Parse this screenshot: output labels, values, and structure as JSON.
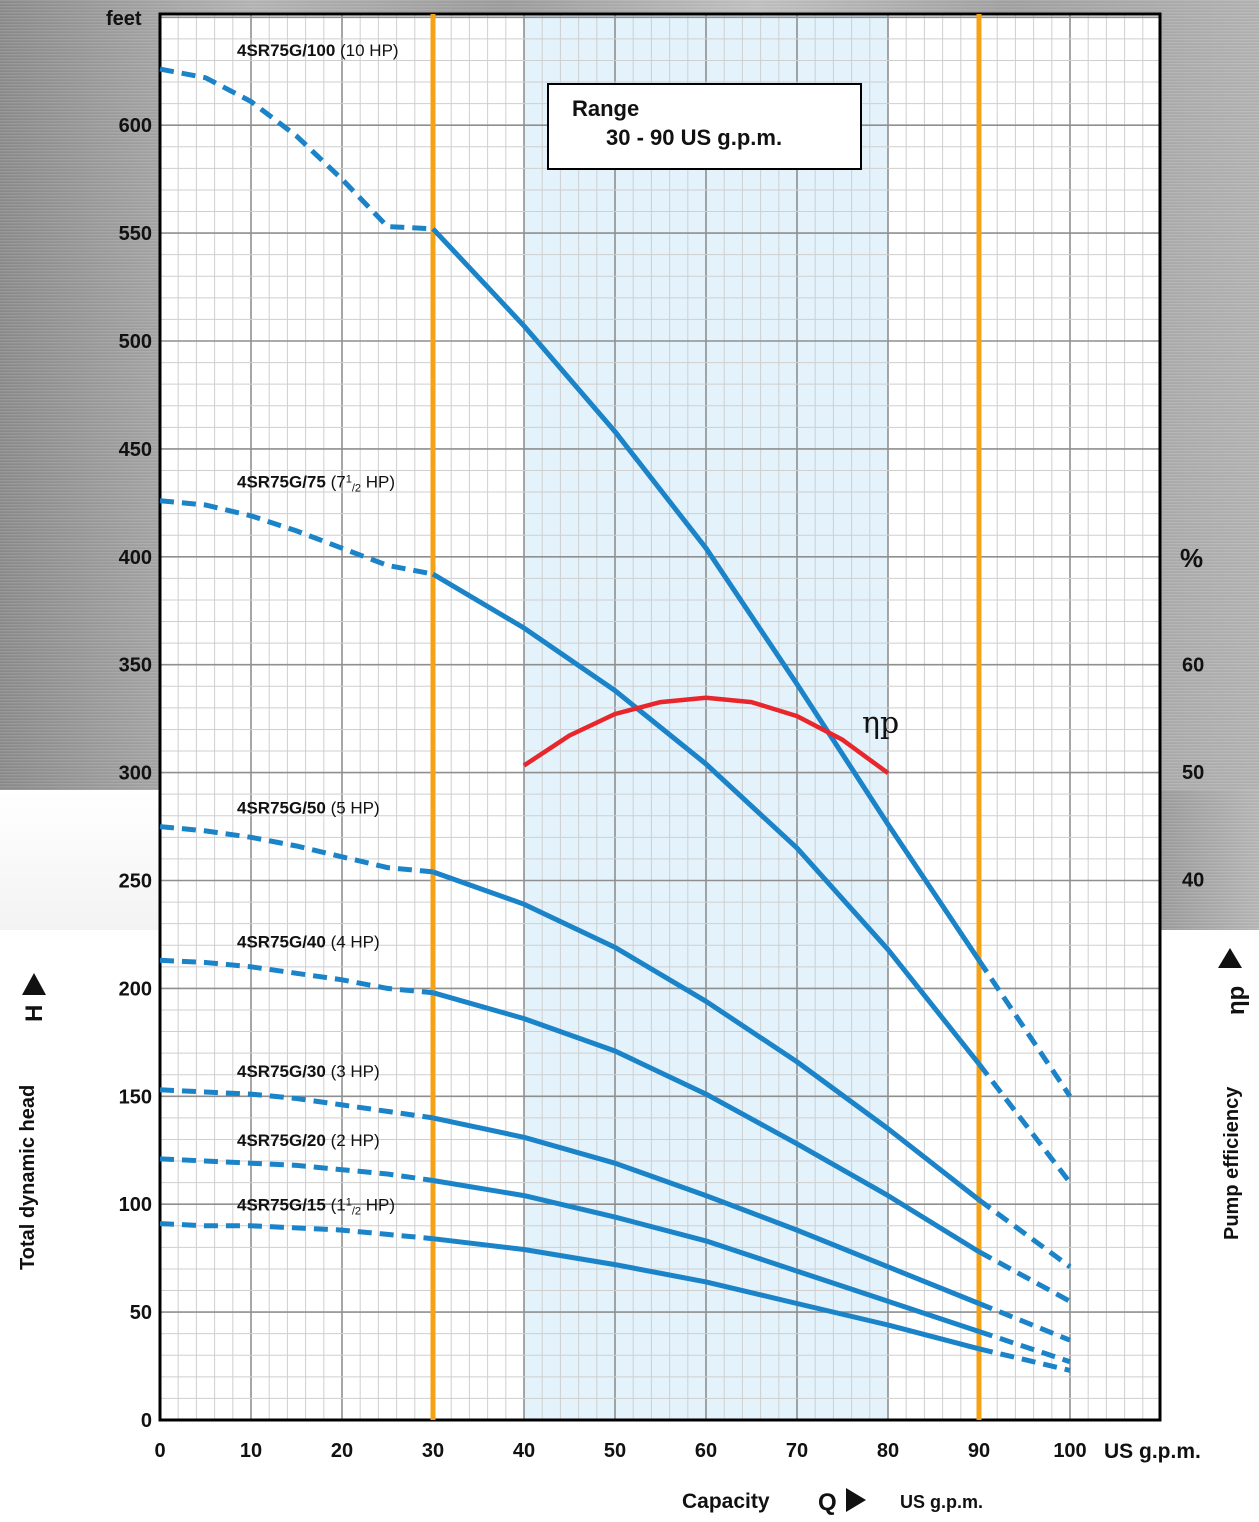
{
  "chart_data": {
    "type": "line",
    "x_unit_label": "US g.p.m.",
    "xlabel": "Capacity",
    "xlabel_symbol": "Q",
    "xlabel_unit": "US g.p.m.",
    "y_unit_label": "feet",
    "ylabel": "Total dynamic head",
    "ylabel_symbol": "H",
    "y2_unit_label": "%",
    "y2label": "Pump efficiency",
    "y2label_symbol": "ηp",
    "xlim": [
      0,
      110
    ],
    "ylim": [
      0,
      650
    ],
    "y2lim": [
      20,
      70
    ],
    "x_ticks": [
      "0",
      "10",
      "20",
      "30",
      "40",
      "50",
      "60",
      "70",
      "80",
      "90",
      "100"
    ],
    "y_ticks": [
      "0",
      "50",
      "100",
      "150",
      "200",
      "250",
      "300",
      "350",
      "400",
      "450",
      "500",
      "550",
      "600"
    ],
    "y2_ticks": [
      "40",
      "50",
      "60"
    ],
    "grid": true,
    "range_box": {
      "title": "Range",
      "text": "30 - 90 US g.p.m.",
      "x_from": 40,
      "x_to": 80
    },
    "operating_limits": [
      30,
      90
    ],
    "colors": {
      "curve": "#1b83c8",
      "efficiency": "#e8262b",
      "limit": "#f5a214",
      "range_fill": "#e3f2fb"
    },
    "series": [
      {
        "name": "4SR75G/100",
        "power": "(10 HP)",
        "x": [
          0,
          5,
          10,
          15,
          20,
          25,
          30,
          40,
          50,
          60,
          70,
          80,
          90,
          100
        ],
        "y": [
          626,
          622,
          611,
          595,
          575,
          553,
          552,
          507,
          458,
          404,
          341,
          276,
          213,
          150
        ]
      },
      {
        "name": "4SR75G/75",
        "power": "(7",
        "power_sup": "1",
        "power_sub": "/2",
        "power_end": "HP)",
        "x": [
          0,
          5,
          10,
          15,
          20,
          25,
          30,
          40,
          50,
          60,
          70,
          80,
          90,
          100
        ],
        "y": [
          426,
          424,
          419,
          412,
          404,
          396,
          392,
          367,
          338,
          304,
          265,
          218,
          165,
          110
        ]
      },
      {
        "name": "4SR75G/50",
        "power": "(5 HP)",
        "x": [
          0,
          5,
          10,
          15,
          20,
          25,
          30,
          40,
          50,
          60,
          70,
          80,
          90,
          100
        ],
        "y": [
          275,
          273,
          270,
          266,
          261,
          256,
          254,
          239,
          219,
          194,
          166,
          135,
          102,
          71
        ]
      },
      {
        "name": "4SR75G/40",
        "power": "(4 HP)",
        "x": [
          0,
          5,
          10,
          15,
          20,
          25,
          30,
          40,
          50,
          60,
          70,
          80,
          90,
          100
        ],
        "y": [
          213,
          212,
          210,
          207,
          204,
          200,
          198,
          186,
          171,
          151,
          128,
          104,
          78,
          55
        ]
      },
      {
        "name": "4SR75G/30",
        "power": "(3 HP)",
        "x": [
          0,
          5,
          10,
          15,
          20,
          25,
          30,
          40,
          50,
          60,
          70,
          80,
          90,
          100
        ],
        "y": [
          153,
          152,
          151,
          149,
          146,
          143,
          140,
          131,
          119,
          104,
          88,
          71,
          54,
          37
        ]
      },
      {
        "name": "4SR75G/20",
        "power": "(2 HP)",
        "x": [
          0,
          5,
          10,
          15,
          20,
          25,
          30,
          40,
          50,
          60,
          70,
          80,
          90,
          100
        ],
        "y": [
          121,
          120,
          119,
          118,
          116,
          114,
          111,
          104,
          94,
          83,
          69,
          55,
          41,
          27
        ]
      },
      {
        "name": "4SR75G/15",
        "power": "(1",
        "power_sup": "1",
        "power_sub": "/2",
        "power_end": "HP)",
        "x": [
          0,
          5,
          10,
          15,
          20,
          25,
          30,
          40,
          50,
          60,
          70,
          80,
          90,
          100
        ],
        "y": [
          91,
          90,
          90,
          89,
          88,
          86,
          84,
          79,
          72,
          64,
          54,
          44,
          33,
          23
        ]
      }
    ],
    "efficiency": {
      "name": "ηp",
      "x": [
        40,
        45,
        50,
        55,
        60,
        65,
        70,
        75,
        80
      ],
      "y": [
        50.6,
        53.4,
        55.4,
        56.5,
        56.9,
        56.5,
        55.2,
        53.0,
        49.9
      ]
    }
  }
}
